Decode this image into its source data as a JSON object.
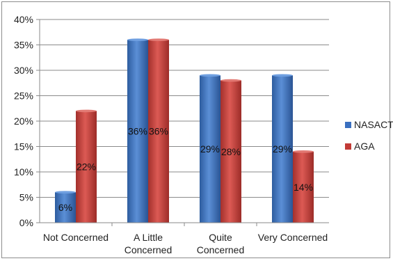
{
  "chart_data": {
    "type": "bar",
    "categories": [
      "Not Concerned",
      "A Little Concerned",
      "Quite Concerned",
      "Very Concerned"
    ],
    "category_lines": [
      [
        "Not Concerned"
      ],
      [
        "A Little",
        "Concerned"
      ],
      [
        "Quite",
        "Concerned"
      ],
      [
        "Very Concerned"
      ]
    ],
    "series": [
      {
        "name": "NASACT",
        "values": [
          6,
          36,
          29,
          29
        ],
        "labels": [
          "6%",
          "36%",
          "29%",
          "29%"
        ],
        "color": "#3a70c0"
      },
      {
        "name": "AGA",
        "values": [
          22,
          36,
          28,
          14
        ],
        "labels": [
          "22%",
          "36%",
          "28%",
          "14%"
        ],
        "color": "#c23b36"
      }
    ],
    "ylim": [
      0,
      40
    ],
    "yticks": [
      "0%",
      "5%",
      "10%",
      "15%",
      "20%",
      "25%",
      "30%",
      "35%",
      "40%"
    ],
    "grid": true,
    "legend_position": "right",
    "xlabel": "",
    "ylabel": "",
    "title": ""
  }
}
